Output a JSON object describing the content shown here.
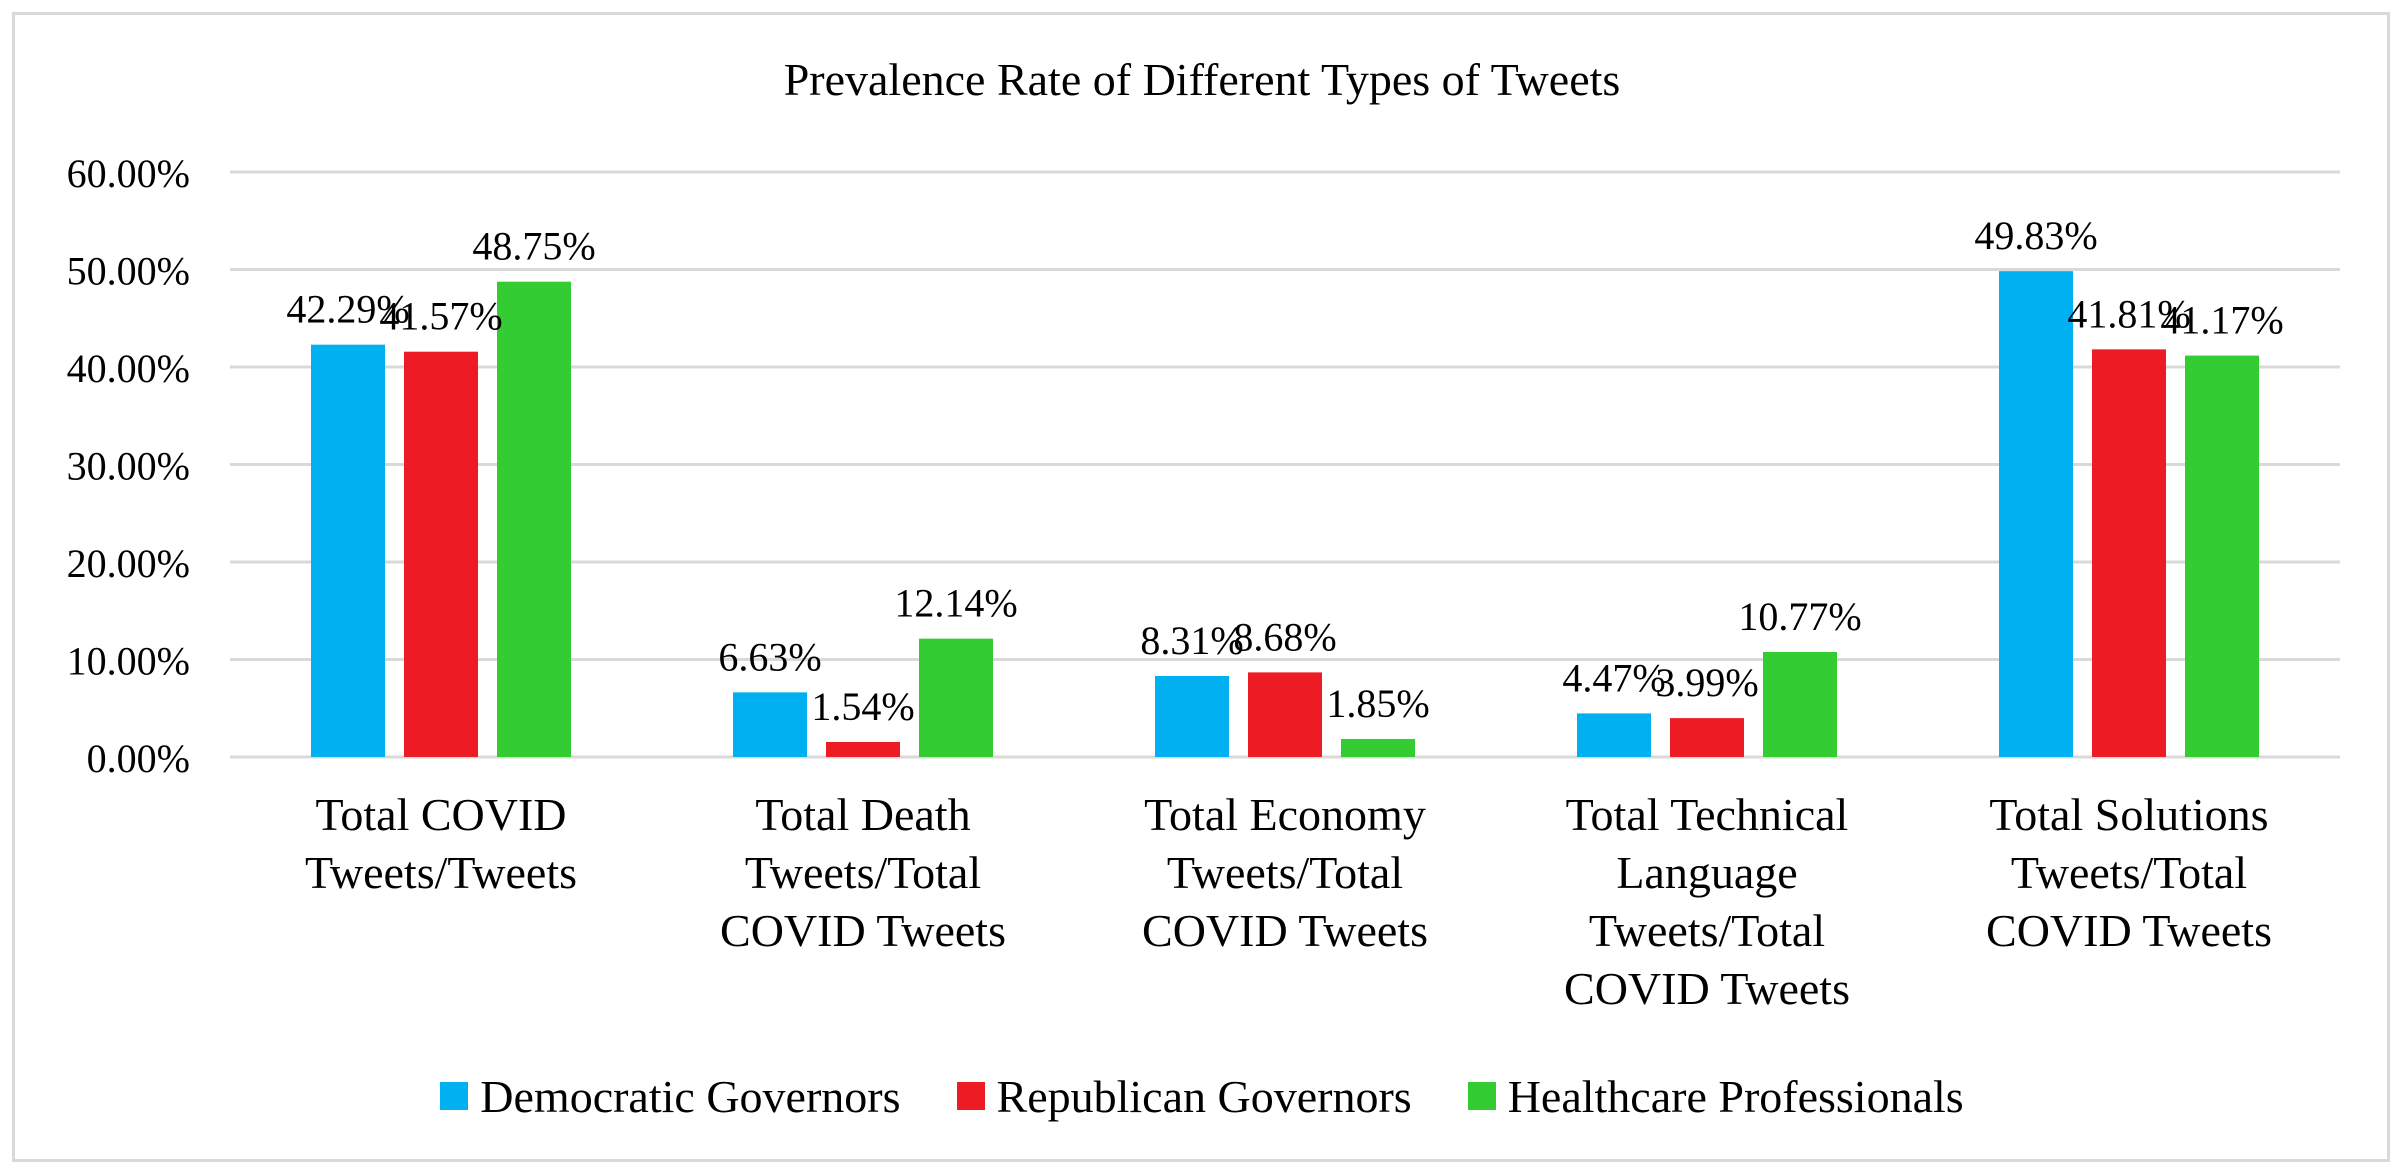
{
  "chart_data": {
    "type": "bar",
    "title": "Prevalence Rate of Different Types of Tweets",
    "categories": [
      [
        "Total COVID",
        "Tweets/Tweets"
      ],
      [
        "Total Death",
        "Tweets/Total",
        "COVID Tweets"
      ],
      [
        "Total Economy",
        "Tweets/Total",
        "COVID Tweets"
      ],
      [
        "Total Technical",
        "Language",
        "Tweets/Total",
        "COVID Tweets"
      ],
      [
        "Total Solutions",
        "Tweets/Total",
        "COVID Tweets"
      ]
    ],
    "series": [
      {
        "name": "Democratic Governors",
        "color": "#00b0f0",
        "values": [
          42.29,
          6.63,
          8.31,
          4.47,
          49.83
        ],
        "labels": [
          "42.29%",
          "6.63%",
          "8.31%",
          "4.47%",
          "49.83%"
        ]
      },
      {
        "name": "Republican Governors",
        "color": "#ed1c24",
        "values": [
          41.57,
          1.54,
          8.68,
          3.99,
          41.81
        ],
        "labels": [
          "41.57%",
          "1.54%",
          "8.68%",
          "3.99%",
          "41.81%"
        ]
      },
      {
        "name": "Healthcare Professionals",
        "color": "#33cc33",
        "values": [
          48.75,
          12.14,
          1.85,
          10.77,
          41.17
        ],
        "labels": [
          "48.75%",
          "12.14%",
          "1.85%",
          "10.77%",
          "41.17%"
        ]
      }
    ],
    "ylim": [
      0,
      60
    ],
    "yticks": [
      0,
      10,
      20,
      30,
      40,
      50,
      60
    ],
    "ytick_labels": [
      "0.00%",
      "10.00%",
      "20.00%",
      "30.00%",
      "40.00%",
      "50.00%",
      "60.00%"
    ],
    "grid": true,
    "legend_position": "bottom",
    "gridline_color": "#d9d9d9"
  }
}
